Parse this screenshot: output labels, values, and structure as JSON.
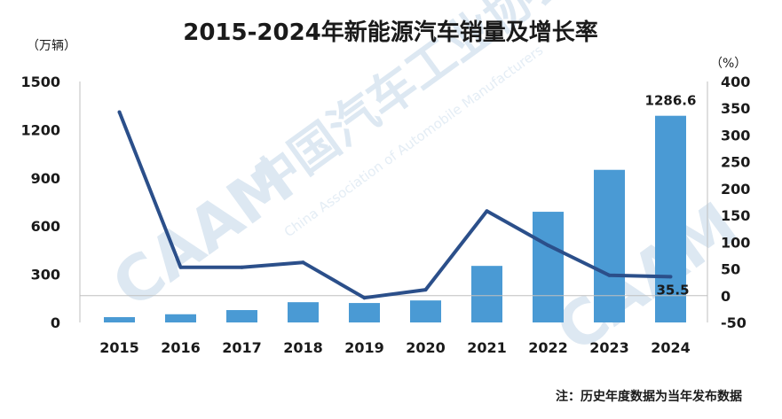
{
  "chart_data": {
    "type": "bar",
    "title": "2015-2024年新能源汽车销量及增长率",
    "left_unit": "（万辆）",
    "right_unit": "（%）",
    "categories": [
      "2015",
      "2016",
      "2017",
      "2018",
      "2019",
      "2020",
      "2021",
      "2022",
      "2023",
      "2024"
    ],
    "series": [
      {
        "type": "bar",
        "axis": "left",
        "color": "#4a9ad4",
        "values": [
          33,
          51,
          77,
          126,
          121,
          137,
          352,
          689,
          950,
          1286.6
        ]
      },
      {
        "type": "line",
        "axis": "right",
        "color": "#2b4f8a",
        "values": [
          343,
          53,
          53,
          62,
          -4,
          11,
          158,
          94,
          38,
          35.5
        ]
      }
    ],
    "data_labels": [
      {
        "series": 0,
        "index": 9,
        "text": "1286.6"
      },
      {
        "series": 1,
        "index": 9,
        "text": "35.5"
      }
    ],
    "left_axis": {
      "ticks": [
        "0",
        "300",
        "600",
        "900",
        "1200",
        "1500"
      ],
      "ylim": [
        0,
        1500
      ]
    },
    "right_axis": {
      "ticks": [
        "-50",
        "0",
        "50",
        "100",
        "150",
        "200",
        "250",
        "300",
        "350",
        "400"
      ],
      "ylim": [
        -50,
        400
      ]
    },
    "grid": false,
    "note": "注：历史年度数据为当年发布数据"
  },
  "watermark": {
    "text": "中国汽车工业协会",
    "subtext": "China Association of Automobile Manufacturers",
    "logo": "CAAM"
  }
}
